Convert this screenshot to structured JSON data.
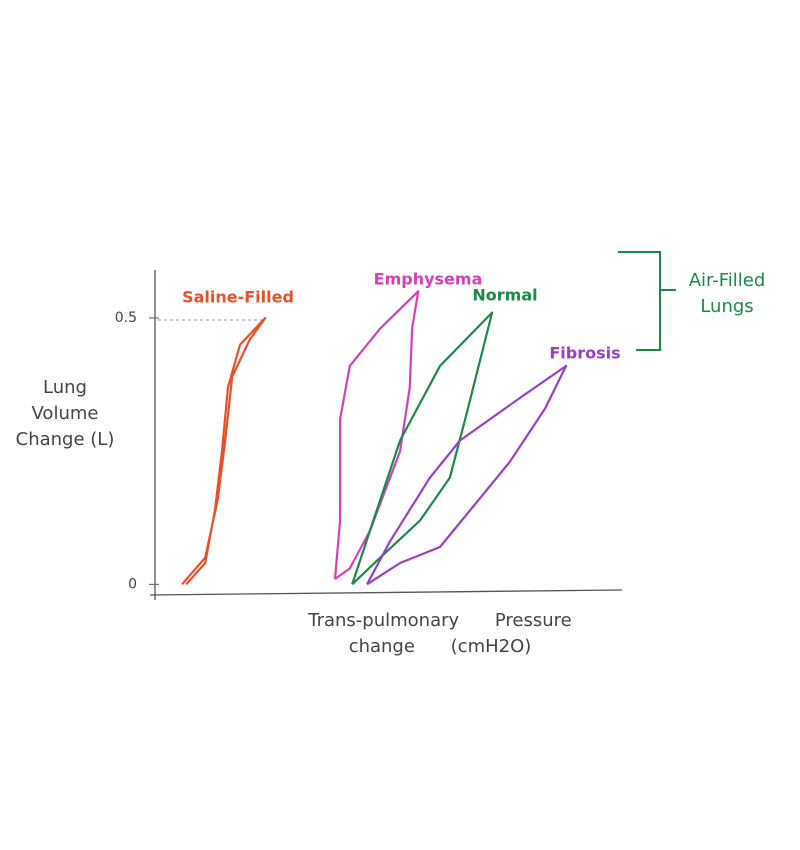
{
  "chart_data": {
    "type": "line",
    "y_label": "Lung Volume Change (L)",
    "x_label": "Trans-pulmonary Pressure change (cmH2O)",
    "annotation": "Air-Filled Lungs",
    "xlim": [
      0,
      10
    ],
    "ylim": [
      -0.02,
      0.59
    ],
    "yticks": [
      0,
      0.5
    ],
    "series": [
      {
        "name": "Saline-Filled",
        "color": "#e8502a",
        "x": [
          0.58,
          1.08,
          1.35,
          1.51,
          1.66,
          2.04,
          2.37,
          1.83,
          1.57,
          1.44,
          1.29,
          1.08,
          0.67
        ],
        "values": [
          0.0,
          0.05,
          0.16,
          0.27,
          0.39,
          0.46,
          0.5,
          0.45,
          0.37,
          0.25,
          0.14,
          0.04,
          0.0
        ]
      },
      {
        "name": "Emphysema",
        "color": "#d63fb8",
        "x": [
          3.87,
          3.98,
          3.98,
          4.19,
          4.84,
          5.66,
          5.53,
          5.48,
          5.27,
          4.62,
          4.19,
          3.87
        ],
        "values": [
          0.01,
          0.12,
          0.31,
          0.41,
          0.48,
          0.55,
          0.48,
          0.37,
          0.25,
          0.1,
          0.03,
          0.01
        ]
      },
      {
        "name": "Normal",
        "color": "#1a8a4a",
        "x": [
          4.24,
          4.62,
          5.27,
          6.13,
          7.25,
          6.99,
          6.67,
          6.34,
          5.7,
          4.84,
          4.24
        ],
        "values": [
          0.0,
          0.1,
          0.27,
          0.41,
          0.51,
          0.42,
          0.31,
          0.2,
          0.12,
          0.05,
          0.0
        ]
      },
      {
        "name": "Fibrosis",
        "color": "#9b3fc0",
        "x": [
          4.56,
          5.05,
          5.91,
          6.56,
          7.85,
          8.84,
          8.39,
          7.63,
          6.13,
          5.27,
          4.56
        ],
        "values": [
          0.0,
          0.08,
          0.2,
          0.27,
          0.35,
          0.41,
          0.33,
          0.23,
          0.07,
          0.04,
          0.0
        ]
      }
    ]
  }
}
